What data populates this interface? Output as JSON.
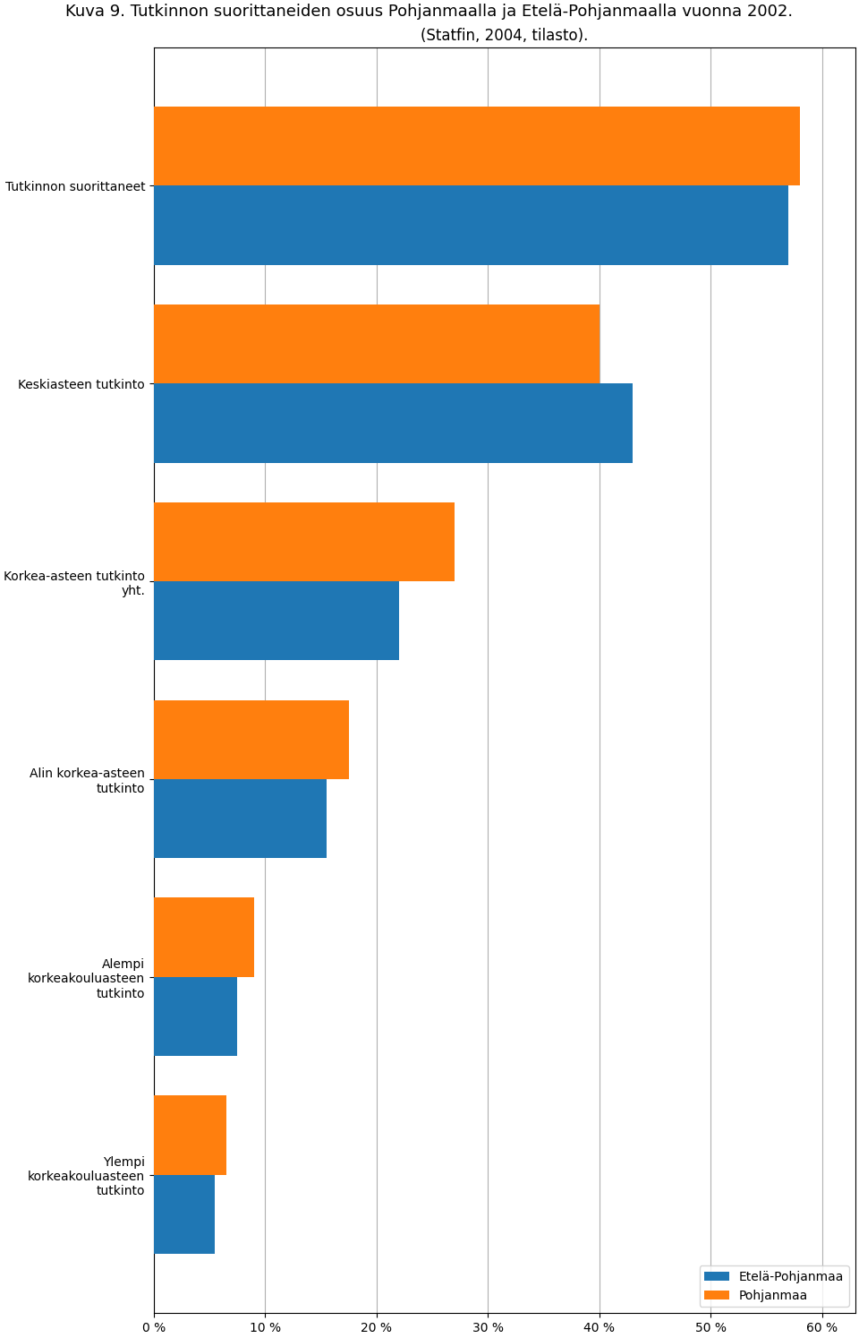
{
  "chart_data": {
    "type": "bar",
    "orientation": "horizontal",
    "title": "Kuva 9. Tutkinnon suorittaneiden osuus Pohjanmaalla ja Etelä-Pohjanmaalla vuonna 2002.",
    "subtitle": "(Statfin, 2004, tilasto).",
    "categories": [
      "Ylempi\nkorkeakouluasteen\ntutkinto",
      "Alempi\nkorkeakouluasteen\ntutkinto",
      "Alin korkea-asteen\ntutkinto",
      "Korkea-asteen tutkinto\nyht.",
      "Keskiasteen tutkinto",
      "Tutkinnon suorittaneet"
    ],
    "series": [
      {
        "name": "Etelä-Pohjanmaa",
        "values": [
          5.5,
          7.5,
          15.5,
          22.0,
          43.0,
          57.0
        ]
      },
      {
        "name": "Pohjanmaa",
        "values": [
          6.5,
          9.0,
          17.5,
          27.0,
          40.0,
          58.0
        ]
      }
    ],
    "xlim": [
      0,
      63
    ],
    "xticks": [
      {
        "value": 0,
        "label": "0 %"
      },
      {
        "value": 10,
        "label": "10 %"
      },
      {
        "value": 20,
        "label": "20 %"
      },
      {
        "value": 30,
        "label": "30 %"
      },
      {
        "value": 40,
        "label": "40 %"
      },
      {
        "value": 50,
        "label": "50 %"
      },
      {
        "value": 60,
        "label": "60 %"
      }
    ],
    "grid": true,
    "legend": "lower right"
  }
}
